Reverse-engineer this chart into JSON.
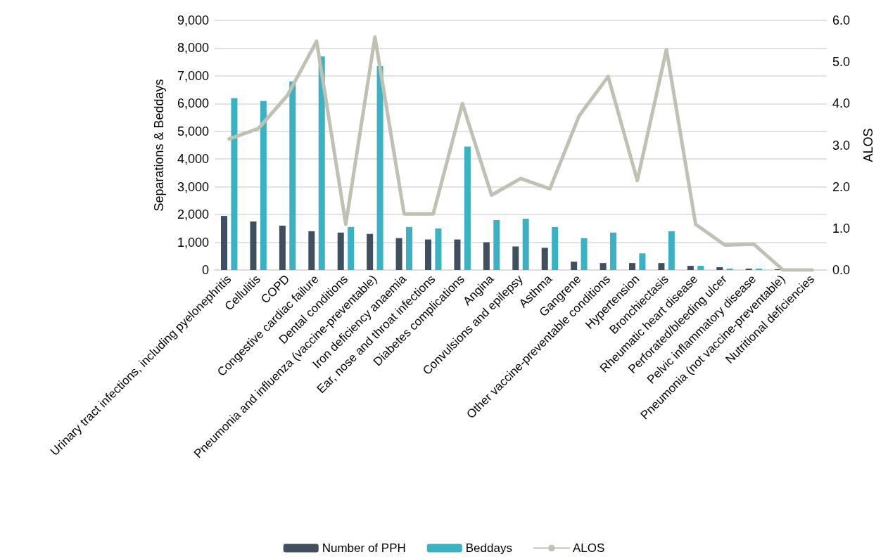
{
  "chart_data": {
    "type": "bar",
    "ylabel": "Separations & Beddays",
    "y2label": "ALOS",
    "categories": [
      "Urinary tract infections, including pyelonephritis",
      "Cellulitis",
      "COPD",
      "Congestive cardiac failure",
      "Dental conditions",
      "Pneumonia and influenza (vaccine-preventable)",
      "Iron deficiency anaemia",
      "Ear, nose and throat infections",
      "Diabetes complications",
      "Angina",
      "Convulsions and epilepsy",
      "Asthma",
      "Gangrene",
      "Other vaccine-preventable conditions",
      "Hypertension",
      "Bronchiectasis",
      "Rheumatic heart disease",
      "Perforated/bleeding ulcer",
      "Pelvic inflammatory disease",
      "Pneumonia (not vaccine-preventable)",
      "Nutritional deficiencies"
    ],
    "series": [
      {
        "name": "Number of PPH",
        "color": "#3f4f5f",
        "values": [
          1950,
          1750,
          1600,
          1400,
          1350,
          1300,
          1150,
          1100,
          1100,
          1000,
          850,
          800,
          300,
          250,
          250,
          250,
          150,
          100,
          50,
          30,
          null
        ]
      },
      {
        "name": "Beddays",
        "color": "#3bb2c3",
        "values": [
          6200,
          6100,
          6800,
          7700,
          1550,
          7350,
          1550,
          1500,
          4450,
          1800,
          1850,
          1550,
          1150,
          1350,
          600,
          1400,
          150,
          50,
          50,
          0,
          0
        ]
      },
      {
        "name": "ALOS",
        "type": "line",
        "axis": "y2",
        "color": "#c0c1b2",
        "values": [
          3.15,
          3.4,
          4.2,
          5.5,
          1.1,
          5.6,
          1.35,
          1.35,
          4.0,
          1.8,
          2.2,
          1.95,
          3.7,
          4.65,
          2.15,
          5.3,
          1.1,
          0.6,
          0.62,
          0,
          0
        ]
      }
    ],
    "ylim": [
      0,
      9000
    ],
    "yticks": [
      {
        "value": 0,
        "label": "0"
      },
      {
        "value": 1000,
        "label": "1,000"
      },
      {
        "value": 2000,
        "label": "2,000"
      },
      {
        "value": 3000,
        "label": "3,000"
      },
      {
        "value": 4000,
        "label": "4,000"
      },
      {
        "value": 5000,
        "label": "5,000"
      },
      {
        "value": 6000,
        "label": "6,000"
      },
      {
        "value": 7000,
        "label": "7,000"
      },
      {
        "value": 8000,
        "label": "8,000"
      },
      {
        "value": 9000,
        "label": "9,000"
      }
    ],
    "y2lim": [
      0,
      6
    ],
    "y2ticks": [
      {
        "value": 0,
        "label": "0.0"
      },
      {
        "value": 1,
        "label": "1.0"
      },
      {
        "value": 2,
        "label": "2.0"
      },
      {
        "value": 3,
        "label": "3.0"
      },
      {
        "value": 4,
        "label": "4.0"
      },
      {
        "value": 5,
        "label": "5.0"
      },
      {
        "value": 6,
        "label": "6.0"
      }
    ],
    "grid": "y",
    "legend": "bottom",
    "marker": "none",
    "line_style": "solid"
  }
}
